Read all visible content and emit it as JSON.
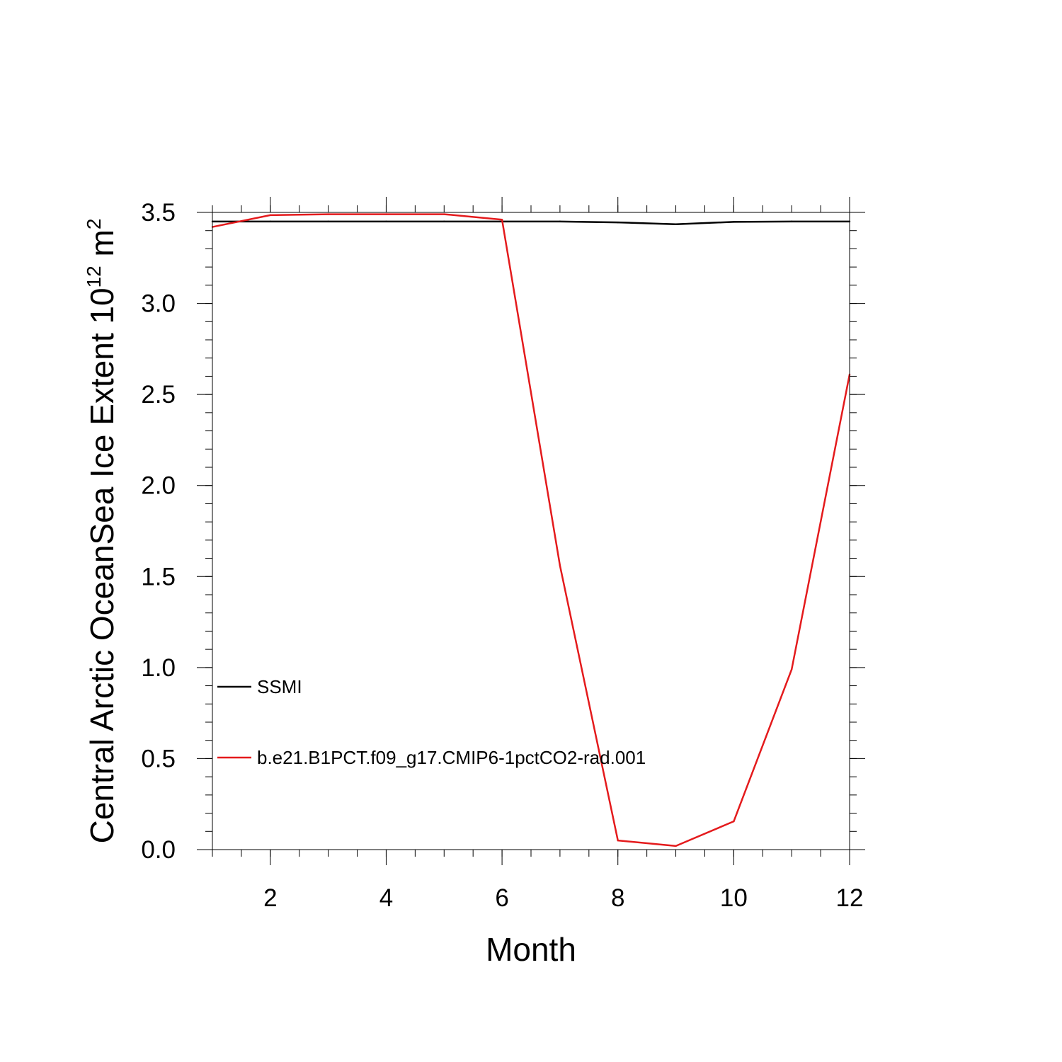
{
  "chart_data": {
    "type": "line",
    "xlabel": "Month",
    "ylabel": {
      "prefix": "Central Arctic OceanSea Ice Extent 10",
      "exp1": "12",
      "mid": " m",
      "exp2": "2"
    },
    "xlim": [
      1,
      12
    ],
    "ylim": [
      0.0,
      3.5
    ],
    "xticks": [
      2,
      4,
      6,
      8,
      10,
      12
    ],
    "yticks": [
      "0.0",
      "0.5",
      "1.0",
      "1.5",
      "2.0",
      "2.5",
      "3.0",
      "3.5"
    ],
    "grid": false,
    "legend_position": "lower-left",
    "x": [
      1,
      2,
      3,
      4,
      5,
      6,
      7,
      8,
      9,
      10,
      11,
      12
    ],
    "series": [
      {
        "name": "SSMI",
        "color": "#000000",
        "values": [
          3.45,
          3.45,
          3.45,
          3.45,
          3.45,
          3.45,
          3.45,
          3.445,
          3.435,
          3.448,
          3.45,
          3.45
        ]
      },
      {
        "name": "b.e21.B1PCT.f09_g17.CMIP6-1pctCO2-rad.001",
        "color": "#e41a1c",
        "values": [
          3.42,
          3.485,
          3.49,
          3.49,
          3.49,
          3.46,
          1.56,
          0.05,
          0.02,
          0.155,
          0.99,
          2.61
        ]
      }
    ]
  }
}
